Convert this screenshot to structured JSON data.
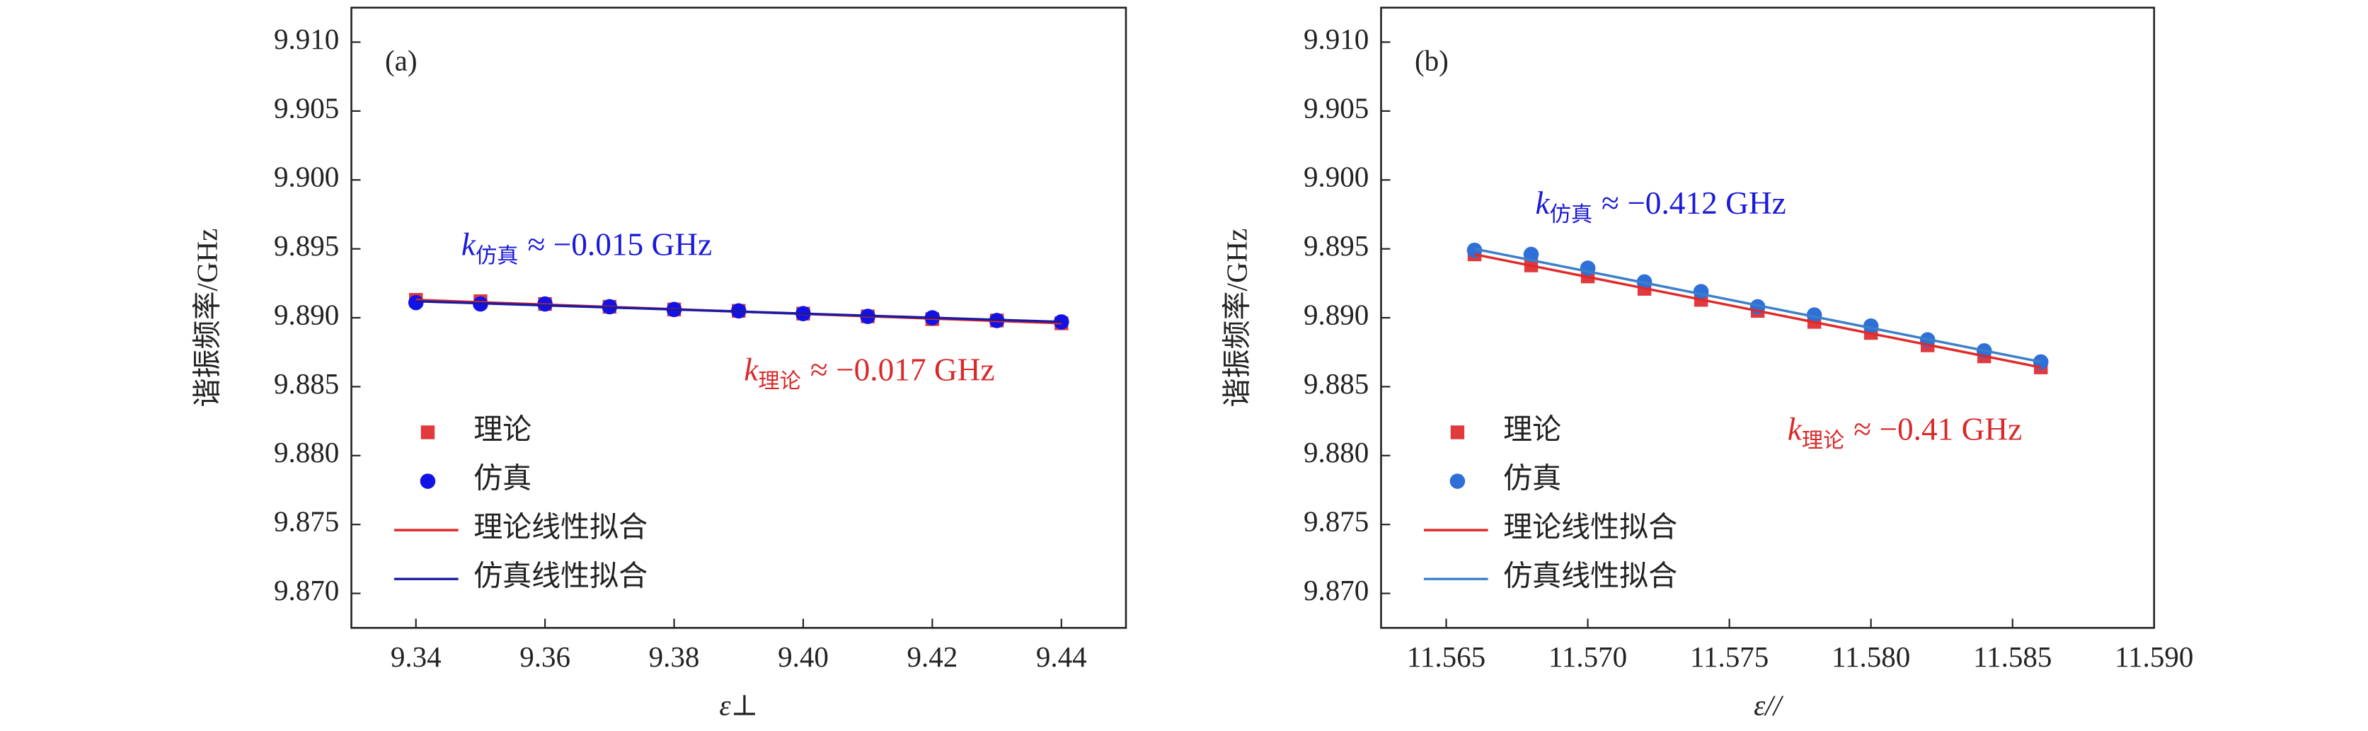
{
  "chart_data": [
    {
      "type": "scatter",
      "panel_label": "(a)",
      "y_label": "谐振频率/GHz",
      "x_label": "ε⊥",
      "xlim": [
        9.33,
        9.45
      ],
      "ylim": [
        9.8675,
        9.9125
      ],
      "xticks": [
        9.34,
        9.36,
        9.38,
        {
          "value": 9.4,
          "label": "9.40"
        },
        9.42,
        9.44
      ],
      "yticks": [
        {
          "value": 9.87,
          "label": "9.870"
        },
        {
          "value": 9.875,
          "label": "9.875"
        },
        {
          "value": 9.88,
          "label": "9.880"
        },
        {
          "value": 9.885,
          "label": "9.885"
        },
        {
          "value": 9.89,
          "label": "9.890"
        },
        {
          "value": 9.895,
          "label": "9.895"
        },
        {
          "value": 9.9,
          "label": "9.900"
        },
        {
          "value": 9.905,
          "label": "9.905"
        },
        {
          "value": 9.91,
          "label": "9.910"
        }
      ],
      "x": [
        9.34,
        9.35,
        9.36,
        9.37,
        9.38,
        9.39,
        9.4,
        9.41,
        9.42,
        9.43,
        9.44
      ],
      "series": [
        {
          "name": "理论",
          "marker": "square",
          "color": "#e0393e",
          "values": [
            9.8913,
            9.8912,
            9.891,
            9.8908,
            9.8906,
            9.8905,
            9.8903,
            9.8901,
            9.8899,
            9.8898,
            9.8896
          ]
        },
        {
          "name": "仿真",
          "marker": "circle",
          "color": "#1212e6",
          "values": [
            9.8911,
            9.891,
            9.891,
            9.8908,
            9.8906,
            9.8905,
            9.8903,
            9.8901,
            9.89,
            9.8898,
            9.8897
          ]
        },
        {
          "name": "理论线性拟合",
          "marker": "line",
          "color": "#e02a2a",
          "x": [
            9.34,
            9.44
          ],
          "values": [
            9.8913,
            9.8896
          ]
        },
        {
          "name": "仿真线性拟合",
          "marker": "line",
          "color": "#1a1aa0",
          "x": [
            9.34,
            9.44
          ],
          "values": [
            9.8912,
            9.8897
          ]
        }
      ],
      "annotations": [
        {
          "k": "k",
          "sub": "仿真",
          "text": "≈ −0.015 GHz",
          "color": "#1a1ad8"
        },
        {
          "k": "k",
          "sub": "理论",
          "text": "≈ −0.017 GHz",
          "color": "#d82a2a"
        }
      ]
    },
    {
      "type": "scatter",
      "panel_label": "(b)",
      "y_label": "谐振频率/GHz",
      "x_label": "ε//",
      "xlim": [
        11.5627,
        11.59
      ],
      "ylim": [
        9.8675,
        9.9125
      ],
      "xticks": [
        11.565,
        {
          "value": 11.57,
          "label": "11.570"
        },
        11.575,
        {
          "value": 11.58,
          "label": "11.580"
        },
        11.585,
        {
          "value": 11.59,
          "label": "11.590"
        }
      ],
      "yticks": [
        {
          "value": 9.87,
          "label": "9.870"
        },
        {
          "value": 9.875,
          "label": "9.875"
        },
        {
          "value": 9.88,
          "label": "9.880"
        },
        {
          "value": 9.885,
          "label": "9.885"
        },
        {
          "value": 9.89,
          "label": "9.890"
        },
        {
          "value": 9.895,
          "label": "9.895"
        },
        {
          "value": 9.9,
          "label": "9.900"
        },
        {
          "value": 9.905,
          "label": "9.905"
        },
        {
          "value": 9.91,
          "label": "9.910"
        }
      ],
      "x": [
        11.566,
        11.568,
        11.57,
        11.572,
        11.574,
        11.576,
        11.578,
        11.58,
        11.582,
        11.584,
        11.586
      ],
      "series": [
        {
          "name": "理论",
          "marker": "square",
          "color": "#e0393e",
          "values": [
            9.8946,
            9.8938,
            9.893,
            9.8921,
            9.8913,
            9.8905,
            9.8897,
            9.8889,
            9.888,
            9.8872,
            9.8864
          ]
        },
        {
          "name": "仿真",
          "marker": "circle",
          "color": "#2f6fd8",
          "values": [
            9.8949,
            9.8946,
            9.8936,
            9.8926,
            9.8919,
            9.8908,
            9.8902,
            9.8894,
            9.8884,
            9.8876,
            9.8868
          ]
        },
        {
          "name": "理论线性拟合",
          "marker": "line",
          "color": "#e02a2a",
          "x": [
            11.566,
            11.586
          ],
          "values": [
            9.8946,
            9.8864
          ]
        },
        {
          "name": "仿真线性拟合",
          "marker": "line",
          "color": "#3a7fc8",
          "x": [
            11.566,
            11.586
          ],
          "values": [
            9.895,
            9.8868
          ]
        }
      ],
      "annotations": [
        {
          "k": "k",
          "sub": "仿真",
          "text": "≈ −0.412 GHz",
          "color": "#1a1ad8"
        },
        {
          "k": "k",
          "sub": "理论",
          "text": "≈ −0.41 GHz",
          "color": "#d82a2a"
        }
      ]
    }
  ]
}
